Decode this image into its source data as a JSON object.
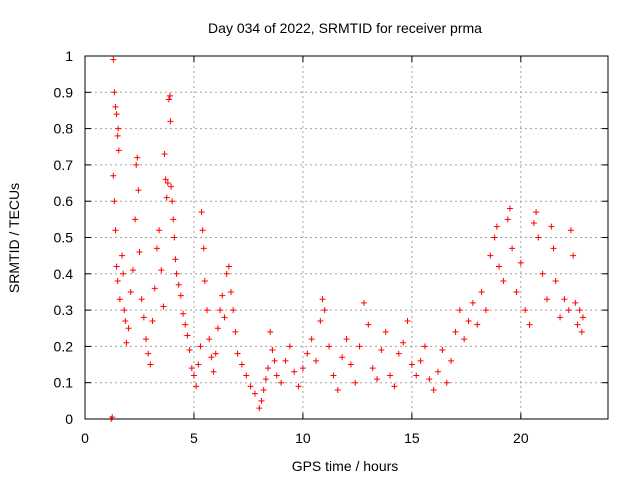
{
  "chart_data": {
    "type": "scatter",
    "title": "Day 034 of 2022, SRMTID for receiver prma",
    "xlabel": "GPS time / hours",
    "ylabel": "SRMTID / TECUs",
    "xlim": [
      0,
      24
    ],
    "ylim": [
      0,
      1
    ],
    "xticks": [
      0,
      5,
      10,
      15,
      20
    ],
    "xtick_labels": [
      "0",
      "5",
      "10",
      "15",
      "20"
    ],
    "yticks": [
      0,
      0.1,
      0.2,
      0.3,
      0.4,
      0.5,
      0.6,
      0.7,
      0.8,
      0.9,
      1.0
    ],
    "ytick_labels": [
      "0",
      "0.1",
      "0.2",
      "0.3",
      "0.4",
      "0.5",
      "0.6",
      "0.7",
      "0.8",
      "0.9",
      "1"
    ],
    "grid": true,
    "marker": "+",
    "series": [
      {
        "name": "SRMTID",
        "color": "#ff0000",
        "points": [
          [
            1.2,
            0.0
          ],
          [
            1.25,
            0.005
          ],
          [
            1.3,
            0.99
          ],
          [
            1.35,
            0.9
          ],
          [
            1.4,
            0.86
          ],
          [
            1.45,
            0.84
          ],
          [
            1.5,
            0.78
          ],
          [
            1.52,
            0.8
          ],
          [
            1.55,
            0.74
          ],
          [
            1.3,
            0.67
          ],
          [
            1.35,
            0.6
          ],
          [
            1.4,
            0.52
          ],
          [
            1.45,
            0.42
          ],
          [
            1.5,
            0.38
          ],
          [
            1.6,
            0.33
          ],
          [
            1.7,
            0.45
          ],
          [
            1.75,
            0.4
          ],
          [
            1.8,
            0.3
          ],
          [
            1.85,
            0.27
          ],
          [
            1.9,
            0.21
          ],
          [
            2.0,
            0.25
          ],
          [
            2.1,
            0.35
          ],
          [
            2.2,
            0.41
          ],
          [
            2.3,
            0.55
          ],
          [
            2.35,
            0.7
          ],
          [
            2.4,
            0.72
          ],
          [
            2.45,
            0.63
          ],
          [
            2.5,
            0.46
          ],
          [
            2.6,
            0.33
          ],
          [
            2.7,
            0.28
          ],
          [
            2.8,
            0.22
          ],
          [
            2.9,
            0.18
          ],
          [
            3.0,
            0.15
          ],
          [
            3.1,
            0.27
          ],
          [
            3.2,
            0.36
          ],
          [
            3.3,
            0.47
          ],
          [
            3.4,
            0.52
          ],
          [
            3.5,
            0.41
          ],
          [
            3.6,
            0.31
          ],
          [
            3.65,
            0.73
          ],
          [
            3.7,
            0.66
          ],
          [
            3.75,
            0.61
          ],
          [
            3.8,
            0.65
          ],
          [
            3.85,
            0.88
          ],
          [
            3.9,
            0.89
          ],
          [
            3.92,
            0.82
          ],
          [
            3.95,
            0.64
          ],
          [
            4.0,
            0.6
          ],
          [
            4.05,
            0.55
          ],
          [
            4.1,
            0.5
          ],
          [
            4.15,
            0.44
          ],
          [
            4.2,
            0.4
          ],
          [
            4.3,
            0.37
          ],
          [
            4.4,
            0.34
          ],
          [
            4.5,
            0.29
          ],
          [
            4.6,
            0.26
          ],
          [
            4.7,
            0.23
          ],
          [
            4.8,
            0.19
          ],
          [
            4.9,
            0.14
          ],
          [
            5.0,
            0.12
          ],
          [
            5.1,
            0.09
          ],
          [
            5.2,
            0.15
          ],
          [
            5.3,
            0.2
          ],
          [
            5.35,
            0.57
          ],
          [
            5.4,
            0.52
          ],
          [
            5.45,
            0.47
          ],
          [
            5.5,
            0.38
          ],
          [
            5.6,
            0.3
          ],
          [
            5.7,
            0.22
          ],
          [
            5.8,
            0.17
          ],
          [
            5.9,
            0.13
          ],
          [
            6.0,
            0.18
          ],
          [
            6.1,
            0.25
          ],
          [
            6.2,
            0.3
          ],
          [
            6.3,
            0.34
          ],
          [
            6.4,
            0.28
          ],
          [
            6.5,
            0.4
          ],
          [
            6.6,
            0.42
          ],
          [
            6.7,
            0.35
          ],
          [
            6.8,
            0.3
          ],
          [
            6.9,
            0.24
          ],
          [
            7.0,
            0.18
          ],
          [
            7.2,
            0.15
          ],
          [
            7.4,
            0.12
          ],
          [
            7.6,
            0.09
          ],
          [
            7.8,
            0.07
          ],
          [
            8.0,
            0.03
          ],
          [
            8.1,
            0.05
          ],
          [
            8.2,
            0.08
          ],
          [
            8.3,
            0.11
          ],
          [
            8.4,
            0.14
          ],
          [
            8.5,
            0.24
          ],
          [
            8.6,
            0.19
          ],
          [
            8.7,
            0.16
          ],
          [
            8.8,
            0.12
          ],
          [
            9.0,
            0.1
          ],
          [
            9.2,
            0.16
          ],
          [
            9.4,
            0.2
          ],
          [
            9.6,
            0.13
          ],
          [
            9.8,
            0.09
          ],
          [
            10.0,
            0.14
          ],
          [
            10.2,
            0.18
          ],
          [
            10.4,
            0.22
          ],
          [
            10.6,
            0.16
          ],
          [
            10.8,
            0.27
          ],
          [
            10.9,
            0.33
          ],
          [
            11.0,
            0.3
          ],
          [
            11.2,
            0.2
          ],
          [
            11.4,
            0.12
          ],
          [
            11.6,
            0.08
          ],
          [
            11.8,
            0.17
          ],
          [
            12.0,
            0.22
          ],
          [
            12.2,
            0.15
          ],
          [
            12.4,
            0.1
          ],
          [
            12.6,
            0.2
          ],
          [
            12.8,
            0.32
          ],
          [
            13.0,
            0.26
          ],
          [
            13.2,
            0.14
          ],
          [
            13.4,
            0.11
          ],
          [
            13.6,
            0.19
          ],
          [
            13.8,
            0.24
          ],
          [
            14.0,
            0.12
          ],
          [
            14.2,
            0.09
          ],
          [
            14.4,
            0.18
          ],
          [
            14.6,
            0.21
          ],
          [
            14.8,
            0.27
          ],
          [
            15.0,
            0.15
          ],
          [
            15.2,
            0.12
          ],
          [
            15.4,
            0.16
          ],
          [
            15.6,
            0.2
          ],
          [
            15.8,
            0.11
          ],
          [
            16.0,
            0.08
          ],
          [
            16.2,
            0.13
          ],
          [
            16.4,
            0.19
          ],
          [
            16.6,
            0.1
          ],
          [
            16.8,
            0.16
          ],
          [
            17.0,
            0.24
          ],
          [
            17.2,
            0.3
          ],
          [
            17.4,
            0.22
          ],
          [
            17.6,
            0.27
          ],
          [
            17.8,
            0.32
          ],
          [
            18.0,
            0.26
          ],
          [
            18.2,
            0.35
          ],
          [
            18.4,
            0.3
          ],
          [
            18.6,
            0.45
          ],
          [
            18.8,
            0.5
          ],
          [
            18.9,
            0.53
          ],
          [
            19.0,
            0.42
          ],
          [
            19.2,
            0.38
          ],
          [
            19.4,
            0.55
          ],
          [
            19.5,
            0.58
          ],
          [
            19.6,
            0.47
          ],
          [
            19.8,
            0.35
          ],
          [
            20.0,
            0.43
          ],
          [
            20.2,
            0.3
          ],
          [
            20.4,
            0.26
          ],
          [
            20.6,
            0.54
          ],
          [
            20.7,
            0.57
          ],
          [
            20.8,
            0.5
          ],
          [
            21.0,
            0.4
          ],
          [
            21.2,
            0.33
          ],
          [
            21.4,
            0.53
          ],
          [
            21.5,
            0.47
          ],
          [
            21.6,
            0.38
          ],
          [
            21.8,
            0.28
          ],
          [
            22.0,
            0.33
          ],
          [
            22.2,
            0.3
          ],
          [
            22.3,
            0.52
          ],
          [
            22.4,
            0.45
          ],
          [
            22.5,
            0.32
          ],
          [
            22.6,
            0.26
          ],
          [
            22.7,
            0.3
          ],
          [
            22.8,
            0.24
          ],
          [
            22.85,
            0.28
          ]
        ]
      }
    ]
  }
}
